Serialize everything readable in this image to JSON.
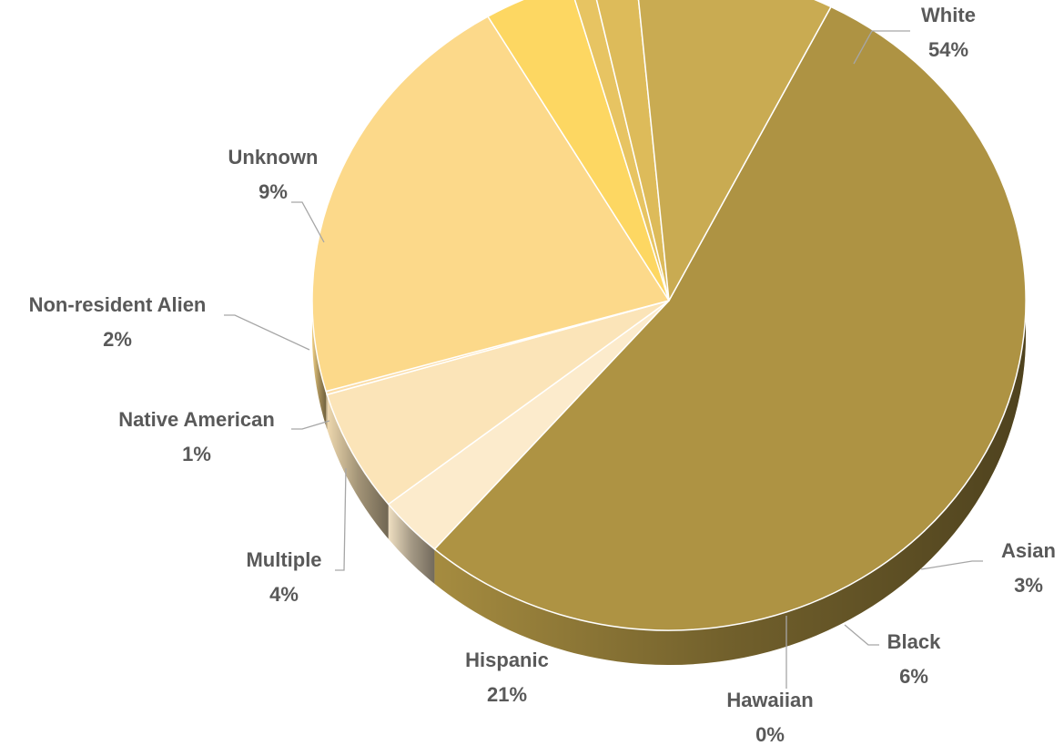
{
  "chart_data": {
    "type": "pie",
    "title": "",
    "data_label_format": "category and percentage",
    "style": "3d tilted pie, gold palette",
    "slices": [
      {
        "category": "White",
        "value": 54,
        "label": "54%",
        "color": "#ae9343"
      },
      {
        "category": "Asian",
        "value": 3,
        "label": "3%",
        "color": "#fcebcc"
      },
      {
        "category": "Black",
        "value": 6,
        "label": "6%",
        "color": "#fbe4b8"
      },
      {
        "category": "Hawaiian",
        "value": 0,
        "label": "0%",
        "color": "#fbdda7"
      },
      {
        "category": "Hispanic",
        "value": 21,
        "label": "21%",
        "color": "#fcd98a"
      },
      {
        "category": "Multiple",
        "value": 4,
        "label": "4%",
        "color": "#fdd762"
      },
      {
        "category": "Native American",
        "value": 1,
        "label": "1%",
        "color": "#e7c462"
      },
      {
        "category": "Non-resident Alien",
        "value": 2,
        "label": "2%",
        "color": "#ddbb5a"
      },
      {
        "category": "Unknown",
        "value": 9,
        "label": "9%",
        "color": "#c9ab52"
      }
    ]
  }
}
